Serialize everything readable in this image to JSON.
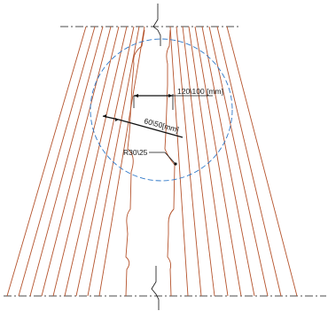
{
  "dimensions": {
    "slot_pitch_label": "120\\100 [mm]",
    "tooth_width_label": "60\\50[mm]",
    "radius_label": "R30\\25"
  },
  "colors": {
    "conductor": "#b5532c",
    "detail_circle": "#2f78c8",
    "centre_line": "#111111"
  }
}
